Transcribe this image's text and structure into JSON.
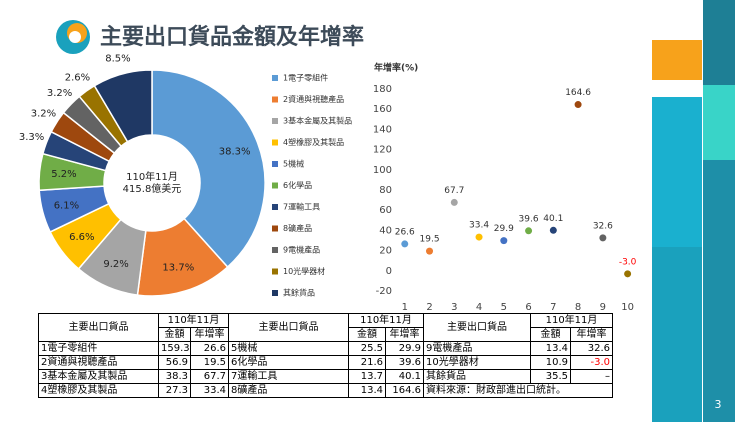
{
  "title": "主要出口貨品金額及年增率",
  "page_number": "3",
  "chart_data": [
    {
      "type": "pie",
      "donut": true,
      "center_label": [
        "110年11月",
        "415.8億美元"
      ],
      "categories": [
        "1電子零組件",
        "2資通與視聽產品",
        "3基本金屬及其製品",
        "4塑橡膠及其製品",
        "5機械",
        "6化學品",
        "7運輸工具",
        "8礦產品",
        "9電機產品",
        "10光學器材",
        "其餘貨品"
      ],
      "values": [
        38.3,
        13.7,
        9.2,
        6.6,
        6.1,
        5.2,
        3.3,
        3.2,
        3.2,
        2.6,
        8.5
      ],
      "value_labels": [
        "38.3%",
        "13.7%",
        "9.2%",
        "6.6%",
        "6.1%",
        "5.2%",
        "3.3%",
        "3.2%",
        "3.2%",
        "2.6%",
        "8.5%"
      ],
      "colors": [
        "#5b9bd5",
        "#ed7d31",
        "#a5a5a5",
        "#ffc000",
        "#4472c4",
        "#70ad47",
        "#264478",
        "#9e480e",
        "#636363",
        "#997300",
        "#1f3864"
      ]
    },
    {
      "type": "scatter",
      "y_label": "年增率(%)",
      "x": [
        1,
        2,
        3,
        4,
        5,
        6,
        7,
        8,
        9,
        10
      ],
      "values": [
        26.6,
        19.5,
        67.7,
        33.4,
        29.9,
        39.6,
        40.1,
        164.6,
        32.6,
        -3.0
      ],
      "value_labels": [
        "26.6",
        "19.5",
        "67.7",
        "33.4",
        "29.9",
        "39.6",
        "40.1",
        "164.6",
        "32.6",
        "-3.0"
      ],
      "colors": [
        "#5b9bd5",
        "#ed7d31",
        "#a5a5a5",
        "#ffc000",
        "#4472c4",
        "#70ad47",
        "#264478",
        "#9e480e",
        "#636363",
        "#997300"
      ],
      "negative_color": "#ff0000",
      "xlim": [
        0,
        10.5
      ],
      "xticks": [
        1,
        2,
        3,
        4,
        5,
        6,
        7,
        8,
        9,
        10
      ],
      "ylim": [
        -20,
        180
      ],
      "yticks": [
        -20,
        0,
        20,
        40,
        60,
        80,
        100,
        120,
        140,
        160,
        180
      ]
    }
  ],
  "table": {
    "groups": [
      {
        "item_header": "主要出口貨品",
        "period": "110年11月",
        "columns": [
          "金額",
          "年增率"
        ],
        "rows": [
          [
            "1電子零組件",
            "159.3",
            "26.6"
          ],
          [
            "2資通與視聽產品",
            "56.9",
            "19.5"
          ],
          [
            "3基本金屬及其製品",
            "38.3",
            "67.7"
          ],
          [
            "4塑橡膠及其製品",
            "27.3",
            "33.4"
          ]
        ]
      },
      {
        "item_header": "主要出口貨品",
        "period": "110年11月",
        "columns": [
          "金額",
          "年增率"
        ],
        "rows": [
          [
            "5機械",
            "25.5",
            "29.9"
          ],
          [
            "6化學品",
            "21.6",
            "39.6"
          ],
          [
            "7運輸工具",
            "13.7",
            "40.1"
          ],
          [
            "8礦產品",
            "13.4",
            "164.6"
          ]
        ]
      },
      {
        "item_header": "主要出口貨品",
        "period": "110年11月",
        "columns": [
          "金額",
          "年增率"
        ],
        "rows": [
          [
            "9電機產品",
            "13.4",
            "32.6"
          ],
          [
            "10光學器材",
            "10.9",
            "-3.0"
          ],
          [
            "其餘貨品",
            "35.5",
            "–"
          ]
        ]
      }
    ],
    "note": "資料來源：財政部進出口統計。"
  }
}
